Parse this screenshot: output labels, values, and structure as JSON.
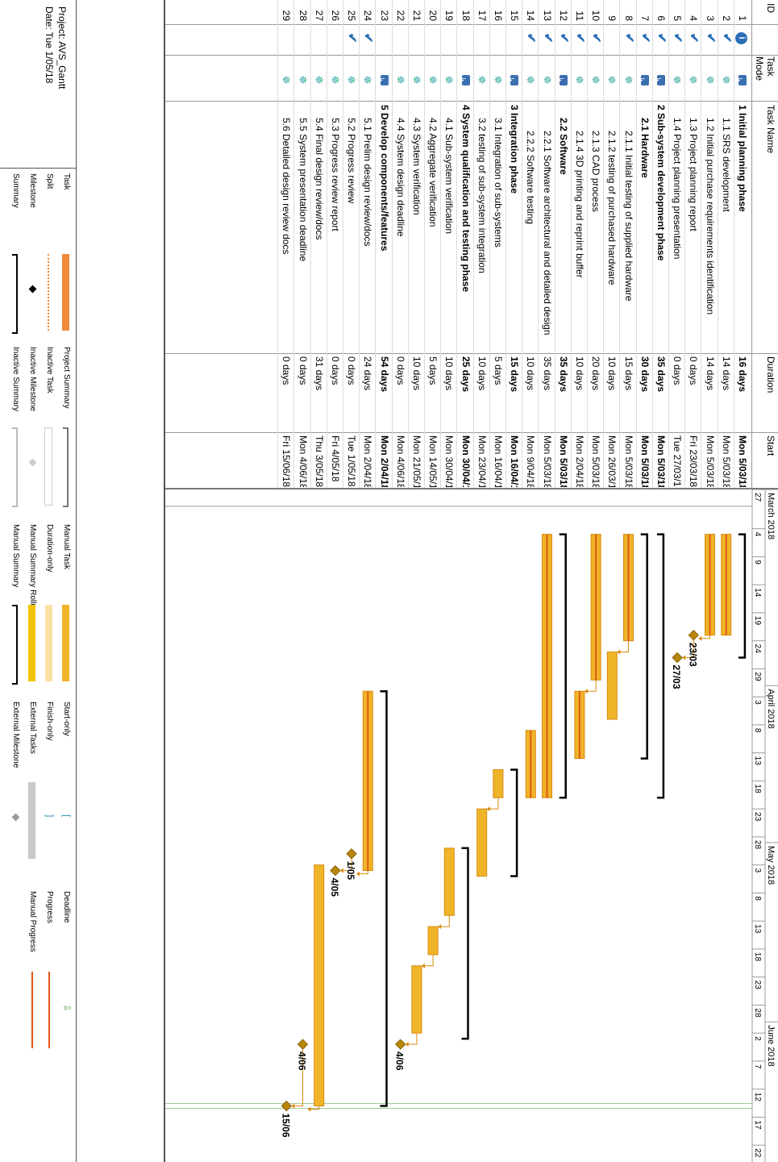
{
  "columns": {
    "id": "ID",
    "mode": "Task Mode",
    "name": "Task Name",
    "duration": "Duration",
    "start": "Start"
  },
  "tasks": [
    {
      "id": "1",
      "mode": "auto",
      "info": true,
      "name": "1 Initial planning phase",
      "duration": "16 days",
      "start": "Mon 5/03/18",
      "bold": true
    },
    {
      "id": "2",
      "mode": "manual",
      "done": true,
      "name": "1.1 SRS development",
      "duration": "14 days",
      "start": "Mon 5/03/18",
      "bold": false
    },
    {
      "id": "3",
      "mode": "manual",
      "done": true,
      "name": "1.2 Initial purchase requirements identification",
      "duration": "14 days",
      "start": "Mon 5/03/18",
      "bold": false
    },
    {
      "id": "4",
      "mode": "manual",
      "done": true,
      "name": "1.3 Project planning report",
      "duration": "0 days",
      "start": "Fri 23/03/18",
      "bold": false
    },
    {
      "id": "5",
      "mode": "manual",
      "done": true,
      "name": "1.4 Project planning presentation",
      "duration": "0 days",
      "start": "Tue 27/03/18",
      "bold": false
    },
    {
      "id": "6",
      "mode": "auto",
      "done": true,
      "name": "2 Sub-system development phase",
      "duration": "35 days",
      "start": "Mon 5/03/18",
      "bold": true
    },
    {
      "id": "7",
      "mode": "auto",
      "done": true,
      "name": "2.1 Hardware",
      "duration": "30 days",
      "start": "Mon 5/03/18",
      "bold": true
    },
    {
      "id": "8",
      "mode": "manual",
      "done": true,
      "name": "2.1.1 Initial testing of supplied hardware",
      "duration": "15 days",
      "start": "Mon 5/03/18",
      "bold": false
    },
    {
      "id": "9",
      "mode": "manual",
      "done": false,
      "name": "2.1.2 testing of purchased hardware",
      "duration": "10 days",
      "start": "Mon 26/03/18",
      "bold": false
    },
    {
      "id": "10",
      "mode": "manual",
      "done": true,
      "name": "2.1.3 CAD process",
      "duration": "20 days",
      "start": "Mon 5/03/18",
      "bold": false
    },
    {
      "id": "11",
      "mode": "manual",
      "done": true,
      "name": "2.1.4 3D printing and reprint buffer",
      "duration": "10 days",
      "start": "Mon 2/04/18",
      "bold": false
    },
    {
      "id": "12",
      "mode": "auto",
      "done": true,
      "name": "2.2 Software",
      "duration": "35 days",
      "start": "Mon 5/03/18",
      "bold": true
    },
    {
      "id": "13",
      "mode": "manual",
      "done": true,
      "name": "2.2.1 Software architectural and detailed design",
      "duration": "35 days",
      "start": "Mon 5/03/18",
      "bold": false
    },
    {
      "id": "14",
      "mode": "manual",
      "done": true,
      "name": "2.2.2 Software testing",
      "duration": "10 days",
      "start": "Mon 9/04/18",
      "bold": false
    },
    {
      "id": "15",
      "mode": "auto",
      "done": false,
      "name": "3 Integration phase",
      "duration": "15 days",
      "start": "Mon 16/04/1",
      "bold": true
    },
    {
      "id": "16",
      "mode": "manual",
      "done": false,
      "name": "3.1 Integration of sub-systems",
      "duration": "5 days",
      "start": "Mon 16/04/1",
      "bold": false
    },
    {
      "id": "17",
      "mode": "manual",
      "done": false,
      "name": "3.2 testing of sub-system integration",
      "duration": "10 days",
      "start": "Mon 23/04/1",
      "bold": false
    },
    {
      "id": "18",
      "mode": "auto",
      "done": false,
      "name": "4 System qualification and testing phase",
      "duration": "25 days",
      "start": "Mon 30/04/1",
      "bold": true
    },
    {
      "id": "19",
      "mode": "manual",
      "done": false,
      "name": "4.1 Sub-system verification",
      "duration": "10 days",
      "start": "Mon 30/04/1",
      "bold": false
    },
    {
      "id": "20",
      "mode": "manual",
      "done": false,
      "name": "4.2 Aggregate verification",
      "duration": "5 days",
      "start": "Mon 14/05/1",
      "bold": false
    },
    {
      "id": "21",
      "mode": "manual",
      "done": false,
      "name": "4.3 System verification",
      "duration": "10 days",
      "start": "Mon 21/05/1",
      "bold": false
    },
    {
      "id": "22",
      "mode": "manual",
      "done": false,
      "name": "4.4 System design deadline",
      "duration": "0 days",
      "start": "Mon 4/06/18",
      "bold": false
    },
    {
      "id": "23",
      "mode": "auto",
      "done": false,
      "name": "5 Develop components/features",
      "duration": "54 days",
      "start": "Mon 2/04/18",
      "bold": true
    },
    {
      "id": "24",
      "mode": "manual",
      "done": true,
      "name": "5.1 Prelim design review/docs",
      "duration": "24 days",
      "start": "Mon 2/04/18",
      "bold": false
    },
    {
      "id": "25",
      "mode": "manual",
      "done": true,
      "name": "5.2 Progress review",
      "duration": "0 days",
      "start": "Tue 1/05/18",
      "bold": false
    },
    {
      "id": "26",
      "mode": "manual",
      "done": false,
      "name": "5.3 Progress review report",
      "duration": "0 days",
      "start": "Fri 4/05/18",
      "bold": false
    },
    {
      "id": "27",
      "mode": "manual",
      "done": false,
      "name": "5.4 Final design review/docs",
      "duration": "31 days",
      "start": "Thu 3/05/18",
      "bold": false
    },
    {
      "id": "28",
      "mode": "manual",
      "done": false,
      "name": "5.5 System presentation deadline",
      "duration": "0 days",
      "start": "Mon 4/06/18",
      "bold": false
    },
    {
      "id": "29",
      "mode": "manual",
      "done": false,
      "name": "5.6 Detailed design review docs",
      "duration": "0 days",
      "start": "Fri 15/06/18",
      "bold": false
    }
  ],
  "timescale": {
    "months": [
      {
        "label": "March 2018",
        "date": "2018-02-25"
      },
      {
        "label": "April 2018",
        "date": "2018-04-01"
      },
      {
        "label": "May 2018",
        "date": "2018-04-29"
      },
      {
        "label": "June 2018",
        "date": "2018-05-31"
      }
    ],
    "days": [
      {
        "label": "27",
        "date": "2018-02-25"
      },
      {
        "label": "4",
        "date": "2018-03-04"
      },
      {
        "label": "9",
        "date": "2018-03-09"
      },
      {
        "label": "14",
        "date": "2018-03-14"
      },
      {
        "label": "19",
        "date": "2018-03-19"
      },
      {
        "label": "24",
        "date": "2018-03-24"
      },
      {
        "label": "29",
        "date": "2018-03-29"
      },
      {
        "label": "3",
        "date": "2018-04-03"
      },
      {
        "label": "8",
        "date": "2018-04-08"
      },
      {
        "label": "13",
        "date": "2018-04-13"
      },
      {
        "label": "18",
        "date": "2018-04-18"
      },
      {
        "label": "23",
        "date": "2018-04-23"
      },
      {
        "label": "28",
        "date": "2018-04-28"
      },
      {
        "label": "3",
        "date": "2018-05-03"
      },
      {
        "label": "8",
        "date": "2018-05-08"
      },
      {
        "label": "13",
        "date": "2018-05-13"
      },
      {
        "label": "18",
        "date": "2018-05-18"
      },
      {
        "label": "23",
        "date": "2018-05-23"
      },
      {
        "label": "28",
        "date": "2018-05-28"
      },
      {
        "label": "2",
        "date": "2018-06-02"
      },
      {
        "label": "7",
        "date": "2018-06-07"
      },
      {
        "label": "12",
        "date": "2018-06-12"
      },
      {
        "label": "17",
        "date": "2018-06-17"
      },
      {
        "label": "22",
        "date": "2018-06-22"
      }
    ],
    "range": [
      "2018-02-25",
      "2018-06-25"
    ],
    "status_line_date": "2018-02-28",
    "deadline_line_date": "2018-06-15"
  },
  "chart_data": {
    "type": "gantt",
    "tasks": [
      {
        "id": 1,
        "type": "summary",
        "start": "2018-03-05",
        "end": "2018-03-26"
      },
      {
        "id": 2,
        "type": "manual",
        "start": "2018-03-05",
        "end": "2018-03-22"
      },
      {
        "id": 3,
        "type": "manual",
        "start": "2018-03-05",
        "end": "2018-03-22"
      },
      {
        "id": 4,
        "type": "milestone",
        "date": "2018-03-23",
        "label": "23/03"
      },
      {
        "id": 5,
        "type": "milestone",
        "date": "2018-03-27",
        "label": "27/03"
      },
      {
        "id": 6,
        "type": "summary",
        "start": "2018-03-05",
        "end": "2018-04-20"
      },
      {
        "id": 7,
        "type": "summary",
        "start": "2018-03-05",
        "end": "2018-04-13"
      },
      {
        "id": 8,
        "type": "manual",
        "start": "2018-03-05",
        "end": "2018-03-23"
      },
      {
        "id": 9,
        "type": "manual",
        "start": "2018-03-26",
        "end": "2018-04-06"
      },
      {
        "id": 10,
        "type": "manual",
        "start": "2018-03-05",
        "end": "2018-03-30"
      },
      {
        "id": 11,
        "type": "manual",
        "start": "2018-04-02",
        "end": "2018-04-13"
      },
      {
        "id": 12,
        "type": "summary",
        "start": "2018-03-05",
        "end": "2018-04-20"
      },
      {
        "id": 13,
        "type": "manual",
        "start": "2018-03-05",
        "end": "2018-04-20"
      },
      {
        "id": 14,
        "type": "manual",
        "start": "2018-04-09",
        "end": "2018-04-20"
      },
      {
        "id": 15,
        "type": "summary",
        "start": "2018-04-16",
        "end": "2018-05-04"
      },
      {
        "id": 16,
        "type": "manual",
        "start": "2018-04-16",
        "end": "2018-04-20"
      },
      {
        "id": 17,
        "type": "manual",
        "start": "2018-04-23",
        "end": "2018-05-04"
      },
      {
        "id": 18,
        "type": "summary",
        "start": "2018-04-30",
        "end": "2018-06-02"
      },
      {
        "id": 19,
        "type": "manual",
        "start": "2018-04-30",
        "end": "2018-05-11"
      },
      {
        "id": 20,
        "type": "manual",
        "start": "2018-05-14",
        "end": "2018-05-18"
      },
      {
        "id": 21,
        "type": "manual",
        "start": "2018-05-21",
        "end": "2018-06-01"
      },
      {
        "id": 22,
        "type": "milestone",
        "date": "2018-06-04",
        "label": "4/06"
      },
      {
        "id": 23,
        "type": "summary",
        "start": "2018-04-02",
        "end": "2018-06-14"
      },
      {
        "id": 24,
        "type": "manual",
        "start": "2018-04-02",
        "end": "2018-05-03"
      },
      {
        "id": 25,
        "type": "milestone",
        "date": "2018-05-01",
        "label": "1/05"
      },
      {
        "id": 26,
        "type": "milestone",
        "date": "2018-05-04",
        "label": "4/05"
      },
      {
        "id": 27,
        "type": "manual",
        "start": "2018-05-03",
        "end": "2018-06-14"
      },
      {
        "id": 28,
        "type": "milestone",
        "date": "2018-06-04",
        "label": "4/06"
      },
      {
        "id": 29,
        "type": "milestone",
        "date": "2018-06-15",
        "label": "15/06"
      }
    ],
    "links": [
      [
        3,
        4
      ],
      [
        4,
        5
      ],
      [
        8,
        9
      ],
      [
        10,
        11
      ],
      [
        16,
        17
      ],
      [
        19,
        20
      ],
      [
        20,
        21
      ],
      [
        21,
        22
      ],
      [
        24,
        25
      ],
      [
        25,
        26
      ],
      [
        27,
        28
      ],
      [
        28,
        29
      ]
    ]
  },
  "legend": {
    "project": "Project: AVS_Gantt",
    "date": "Date: Tue 1/05/18",
    "col1": [
      "Task",
      "Split",
      "Milestone",
      "Summary"
    ],
    "col2": [
      "Project Summary",
      "Inactive Task",
      "Inactive Milestone",
      "Inactive Summary"
    ],
    "col3": [
      "Manual Task",
      "Duration-only",
      "Manual Summary Rollup",
      "Manual Summary"
    ],
    "col4": [
      "Start-only",
      "Finish-only",
      "External Tasks",
      "External Milestone"
    ],
    "col5": [
      "Deadline",
      "Progress",
      "Manual Progress"
    ]
  },
  "colors": {
    "manual_bar": "#f0b429",
    "manual_bar_edge": "#d98a10",
    "task_bar": "#f08a3c",
    "progress": "#e05a14",
    "summary": "#000000",
    "milestone": "#b8860b",
    "check": "#2a6db5",
    "pin": "#3aa8a0",
    "deadline": "#5a9e3a"
  }
}
